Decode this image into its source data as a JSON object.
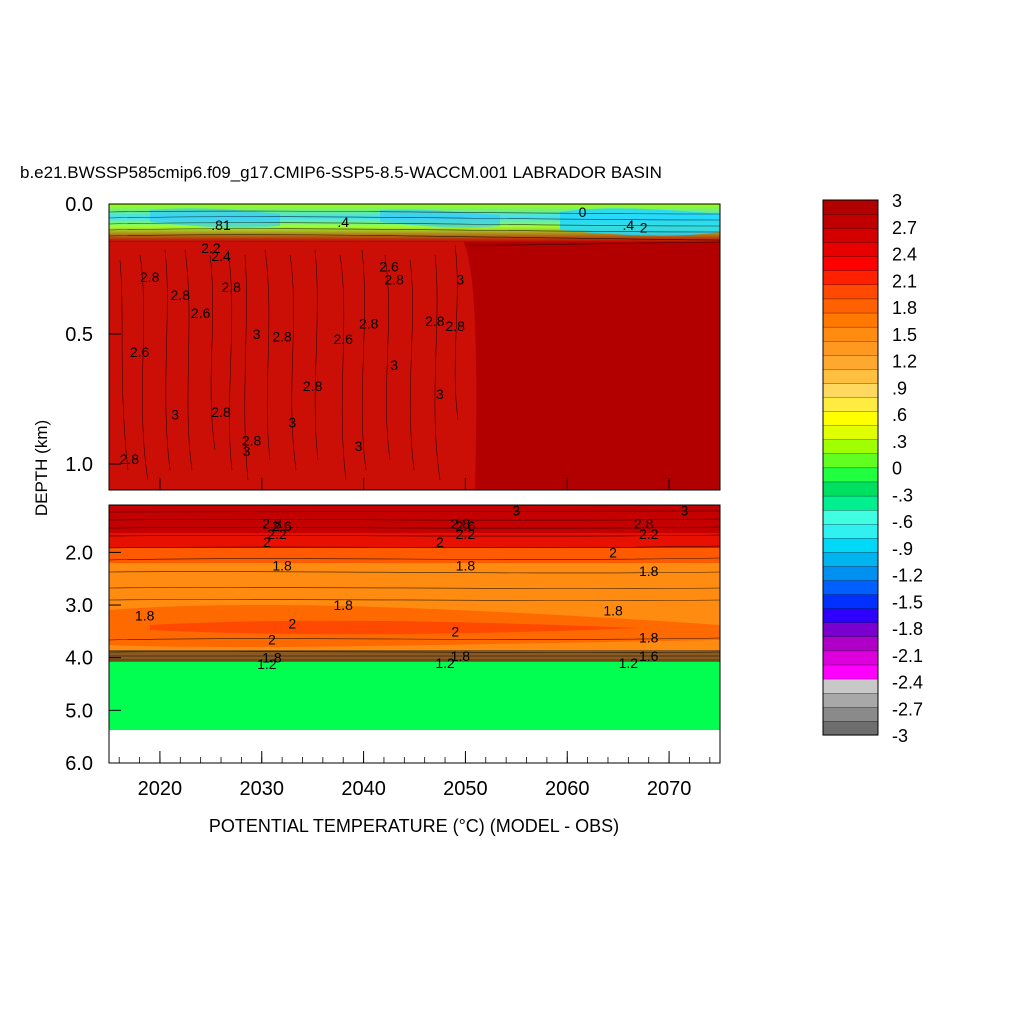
{
  "chart_data": {
    "type": "heatmap",
    "title": "b.e21.BWSSP585cmip6.f09_g17.CMIP6-SSP5-8.5-WACCM.001 LABRADOR BASIN",
    "xlabel": "POTENTIAL TEMPERATURE (°C) (MODEL - OBS)",
    "ylabel": "DEPTH (km)",
    "x_ticks": [
      "2020",
      "2030",
      "2040",
      "2050",
      "2060",
      "2070"
    ],
    "x_range": [
      2015,
      2075
    ],
    "y_ticks_upper": [
      "0.0",
      "0.5",
      "1.0"
    ],
    "y_range_upper": [
      0.0,
      1.1
    ],
    "y_ticks_lower": [
      "2.0",
      "3.0",
      "4.0",
      "5.0",
      "6.0"
    ],
    "y_range_lower": [
      1.1,
      6.0
    ],
    "colorbar_labels": [
      "3",
      "2.7",
      "2.4",
      "2.1",
      "1.8",
      "1.5",
      "1.2",
      ".9",
      ".6",
      ".3",
      "0",
      "-.3",
      "-.6",
      "-.9",
      "-1.2",
      "-1.5",
      "-1.8",
      "-2.1",
      "-2.4",
      "-2.7",
      "-3"
    ],
    "colorbar_range": [
      -3,
      3
    ],
    "colors": [
      "#6e6e6e",
      "#8a8a8a",
      "#a8a8a8",
      "#c8c8c8",
      "#ff00ff",
      "#dd00dd",
      "#b000c8",
      "#7a00d0",
      "#3000ff",
      "#0030ff",
      "#0060ff",
      "#0090f0",
      "#00b4f0",
      "#00d8f8",
      "#30f0f0",
      "#40ffe0",
      "#00f090",
      "#00e060",
      "#20ff40",
      "#60ff20",
      "#a0ff00",
      "#e0ff00",
      "#ffff00",
      "#ffec40",
      "#ffd860",
      "#ffc040",
      "#ffa830",
      "#ff9820",
      "#ff8c10",
      "#ff7800",
      "#ff6000",
      "#ff4800",
      "#ff2000",
      "#ff0000",
      "#e80000",
      "#d40000",
      "#c00000",
      "#b00000"
    ],
    "contour_labels": [
      {
        "text": "2.8",
        "x": 2019,
        "y": 0.28
      },
      {
        "text": "2.8",
        "x": 2022,
        "y": 0.35
      },
      {
        "text": "2.6",
        "x": 2024,
        "y": 0.42
      },
      {
        "text": "2.6",
        "x": 2018,
        "y": 0.57
      },
      {
        "text": "2.8",
        "x": 2027,
        "y": 0.32
      },
      {
        "text": "3",
        "x": 2029.5,
        "y": 0.5
      },
      {
        "text": "2.8",
        "x": 2026,
        "y": 0.8
      },
      {
        "text": "2.8",
        "x": 2032,
        "y": 0.51
      },
      {
        "text": "2.8",
        "x": 2029,
        "y": 0.91
      },
      {
        "text": "3",
        "x": 2028.5,
        "y": 0.95
      },
      {
        "text": "2.8",
        "x": 2035,
        "y": 0.7
      },
      {
        "text": "3",
        "x": 2033,
        "y": 0.84
      },
      {
        "text": "2.6",
        "x": 2038,
        "y": 0.52
      },
      {
        "text": "2.8",
        "x": 2040.5,
        "y": 0.46
      },
      {
        "text": "2.8",
        "x": 2043,
        "y": 0.29
      },
      {
        "text": "2.6",
        "x": 2042.5,
        "y": 0.24
      },
      {
        "text": "3",
        "x": 2043,
        "y": 0.62
      },
      {
        "text": "3",
        "x": 2039.5,
        "y": 0.93
      },
      {
        "text": "2.8",
        "x": 2047,
        "y": 0.45
      },
      {
        "text": "2.8",
        "x": 2049,
        "y": 0.47
      },
      {
        "text": "3",
        "x": 2049.5,
        "y": 0.29
      },
      {
        "text": "3",
        "x": 2047.5,
        "y": 0.73
      },
      {
        "text": "3",
        "x": 2021.5,
        "y": 0.81
      },
      {
        "text": "2.8",
        "x": 2017,
        "y": 0.98
      },
      {
        "text": ".4",
        "x": 2038,
        "y": 0.07
      },
      {
        "text": ".81",
        "x": 2026,
        "y": 0.08
      },
      {
        "text": "0",
        "x": 2061.5,
        "y": 0.03
      },
      {
        "text": ".4",
        "x": 2066,
        "y": 0.08
      },
      {
        "text": "2",
        "x": 2067.5,
        "y": 0.09
      },
      {
        "text": "2.2",
        "x": 2025,
        "y": 0.17
      },
      {
        "text": "2.4",
        "x": 2026,
        "y": 0.2
      },
      {
        "text": "2.8",
        "x": 2031,
        "y": 1.45
      },
      {
        "text": "2.6",
        "x": 2032,
        "y": 1.5
      },
      {
        "text": "2.2",
        "x": 2031.5,
        "y": 1.65
      },
      {
        "text": "2",
        "x": 2030.5,
        "y": 1.8
      },
      {
        "text": "1.8",
        "x": 2032,
        "y": 2.25
      },
      {
        "text": "2.8",
        "x": 2049.5,
        "y": 1.45
      },
      {
        "text": "2.6",
        "x": 2050,
        "y": 1.5
      },
      {
        "text": "2.2",
        "x": 2050,
        "y": 1.65
      },
      {
        "text": "2",
        "x": 2047.5,
        "y": 1.8
      },
      {
        "text": "1.8",
        "x": 2050,
        "y": 2.25
      },
      {
        "text": "3",
        "x": 2055,
        "y": 1.2
      },
      {
        "text": "2.8",
        "x": 2067.5,
        "y": 1.45
      },
      {
        "text": "2.2",
        "x": 2068,
        "y": 1.65
      },
      {
        "text": "2",
        "x": 2064.5,
        "y": 2.0
      },
      {
        "text": "1.8",
        "x": 2068,
        "y": 2.35
      },
      {
        "text": "3",
        "x": 2071.5,
        "y": 1.2
      },
      {
        "text": "1.8",
        "x": 2038,
        "y": 3.0
      },
      {
        "text": "1.8",
        "x": 2018.5,
        "y": 3.2
      },
      {
        "text": "1.8",
        "x": 2064.5,
        "y": 3.1
      },
      {
        "text": "2",
        "x": 2049,
        "y": 3.5
      },
      {
        "text": "2",
        "x": 2033,
        "y": 3.35
      },
      {
        "text": "2",
        "x": 2031,
        "y": 3.65
      },
      {
        "text": "1.8",
        "x": 2068,
        "y": 3.62
      },
      {
        "text": "1.8",
        "x": 2031,
        "y": 4.0
      },
      {
        "text": "1.8",
        "x": 2049.5,
        "y": 3.97
      },
      {
        "text": "1.6",
        "x": 2068,
        "y": 3.97
      },
      {
        "text": "1.2",
        "x": 2030.5,
        "y": 4.12
      },
      {
        "text": "1.2",
        "x": 2048,
        "y": 4.1
      },
      {
        "text": "1.2",
        "x": 2066,
        "y": 4.1
      }
    ]
  }
}
